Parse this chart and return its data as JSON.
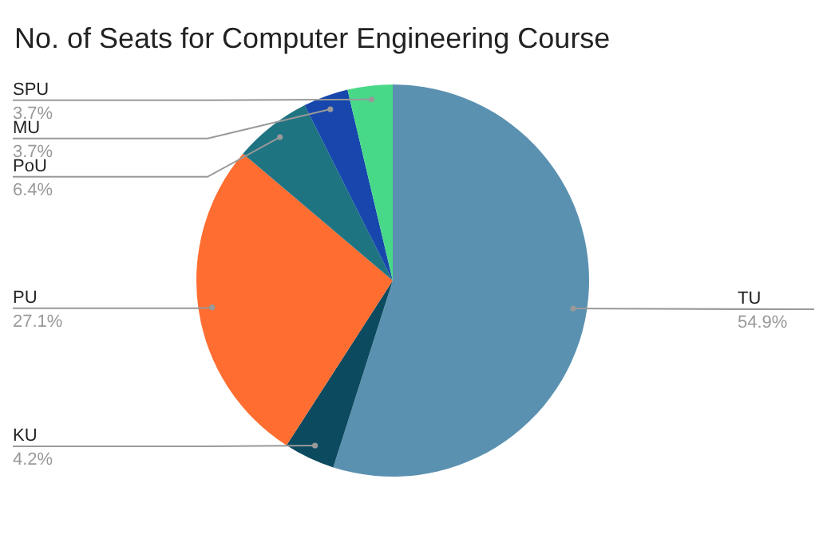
{
  "chart_data": {
    "type": "pie",
    "title": "No. of Seats for Computer Engineering Course",
    "categories": [
      "TU",
      "KU",
      "PU",
      "PoU",
      "MU",
      "SPU"
    ],
    "values": [
      54.9,
      4.2,
      27.1,
      6.4,
      3.7,
      3.7
    ],
    "colors": [
      "#5b91b0",
      "#0c4a60",
      "#ff6d31",
      "#1f7482",
      "#1746ad",
      "#48d988"
    ],
    "value_labels": [
      "54.9%",
      "4.2%",
      "27.1%",
      "6.4%",
      "3.7%",
      "3.7%"
    ],
    "legend": false
  }
}
